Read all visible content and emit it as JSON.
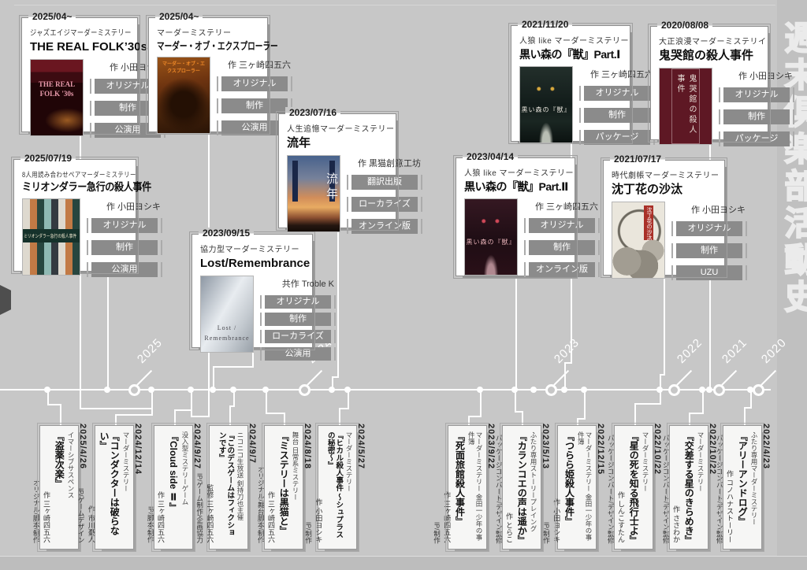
{
  "page": {
    "vertical_title": "週末倶楽部活動史"
  },
  "timeline": {
    "years": [
      "2025",
      "2024",
      "2023",
      "2022",
      "2021",
      "2020"
    ]
  },
  "top_cards": [
    {
      "date": "2025/04~",
      "genre": "ジャズエイジマーダーミステリー",
      "title": "THE REAL FOLK’30s",
      "author": "作 小田ヨシキ",
      "tags": [
        "オリジナル",
        "制作",
        "公演用"
      ],
      "cover_text": "THE REAL FOLK '30s"
    },
    {
      "date": "2025/04~",
      "genre": "マーダーミステリー",
      "title": "マーダー・オブ・エクスプローラー",
      "author": "作 三ヶ崎四五六",
      "tags": [
        "オリジナル",
        "制作",
        "公演用"
      ],
      "cover_text": "マーダー・オブ・エクスプローラー"
    },
    {
      "date": "2025/07/19",
      "genre": "8人用読み合わせペアマーダーミステリー",
      "title": "ミリオンダラー急行の殺人事件",
      "author": "作 小田ヨシキ",
      "tags": [
        "オリジナル",
        "制作",
        "公演用"
      ],
      "cover_text": "ミリオンダラー急行の殺人事件"
    },
    {
      "date": "2023/07/16",
      "genre": "人生追憶マーダーミステリー",
      "title": "流年",
      "author": "作 黒猫創意工坊",
      "tags": [
        "翻訳出版",
        "ローカライズ",
        "オンライン版"
      ],
      "cover_text": "流年"
    },
    {
      "date": "2023/09/15",
      "genre": "協力型マーダーミステリー",
      "title": "Lost/Remembrance",
      "author": "共作 Troble K",
      "tags": [
        "オリジナル",
        "制作",
        "ローカライズ",
        "公演用"
      ],
      "cover_text": "Lost / Remembrance"
    },
    {
      "date": "2021/11/20",
      "genre": "人狼 like マーダーミステリー",
      "title": "黒い森の『獣』Part.Ⅰ",
      "author": "作 三ヶ崎四五六",
      "tags": [
        "オリジナル",
        "制作",
        "パッケージ"
      ],
      "cover_text": "黒い森の『獣』"
    },
    {
      "date": "2020/08/08",
      "genre": "大正浪漫マーダーミステリイ",
      "title": "鬼哭館の殺人事件",
      "author": "作 小田ヨシキ",
      "tags": [
        "オリジナル",
        "制作",
        "パッケージ"
      ],
      "cover_text": "鬼哭館の殺人事件"
    },
    {
      "date": "2023/04/14",
      "genre": "人狼 like マーダーミステリー",
      "title": "黒い森の『獣』Part.Ⅱ",
      "author": "作 三ヶ崎四五六",
      "tags": [
        "オリジナル",
        "制作",
        "オンライン版"
      ],
      "cover_text": "黒い森の『獣』"
    },
    {
      "date": "2021/07/17",
      "genre": "時代劇帳マーダーミステリー",
      "title": "沈丁花の沙汰",
      "author": "作 小田ヨシキ",
      "tags": [
        "オリジナル",
        "制作",
        "UZU"
      ],
      "cover_text": "沈丁花の沙汰"
    }
  ],
  "bottom_cards": [
    {
      "date": "2025/4/26",
      "genre": "イマーシブサスペンス",
      "title": "『盗薬次楽』",
      "author": "作 三ヶ崎四五六",
      "credits": "オリジナル/脚本/制作"
    },
    {
      "date": "2024/12/14",
      "genre": "マーダーミステリー",
      "title": "『コンダクターは破らない』",
      "author": "作 市川憂人",
      "credits": "IP/ゲームデザイン"
    },
    {
      "date": "2024/9/27",
      "genre": "没入型ミステリーゲーム",
      "title": "『Cloud side Ⅱ』",
      "author": "作 三ヶ崎四五六",
      "credits": "IP/脚本/制作"
    },
    {
      "date": "2024/9/7",
      "genre": "ニコニコ生放送 剣持刀也主催",
      "title": "『このデスゲームはフィクションです』",
      "author": "監修 三ヶ崎四五六",
      "credits": "IP/ゲーム制作/企画協力"
    },
    {
      "date": "2024/8/18",
      "genre": "舞台 日常系ミステリー",
      "title": "『ミステリーは黒猫と』",
      "author": "作 三ヶ崎四五六",
      "credits": "オリジナル/舞台脚本/制作"
    },
    {
      "date": "2024/5/27",
      "genre": "マーダーミステリー",
      "title": "『ヒカル殺人事件 ～シュプラスの秘密～』",
      "author": "作 小田ヨシキ",
      "credits": "IP/制作"
    },
    {
      "date": "2023/9/22",
      "genre": "マーダーミステリー 金田一少年の事件簿",
      "title": "『死面旅館殺人事件』",
      "author": "作 三ヶ崎四五六",
      "credits": "IP/制作"
    },
    {
      "date": "2023/5/13",
      "genre": "ふたり専用ストーリープレイング",
      "title": "『カランコエの声は遥か』",
      "author": "作 とらこ",
      "credits": "パッケージコンバート/デザイン監修"
    },
    {
      "date": "2022/12/15",
      "genre": "マーダーミステリー 金田一少年の事件簿",
      "title": "『つらら姫殺人事件』",
      "author": "作 小田ヨシキ",
      "credits": "IP/制作"
    },
    {
      "date": "2022/10/22",
      "genre": "マーダーミステリー",
      "title": "『星の死を知る飛行士よ』",
      "author": "作 しんこすたん",
      "credits": "パッケージコンバート/デザイン監修"
    },
    {
      "date": "2022/10/22",
      "genre": "マーダーミステリー",
      "title": "『交差する星のきらめき』",
      "author": "作 ささわか",
      "credits": "パッケージコンバート/デザイン監修"
    },
    {
      "date": "2022/4/23",
      "genre": "ふたり専用マーダーミステリー",
      "title": "『アリーアンドログ』",
      "author": "作 コノハナストーリー",
      "credits": "パッケージコンバート/デザイン監修"
    }
  ]
}
